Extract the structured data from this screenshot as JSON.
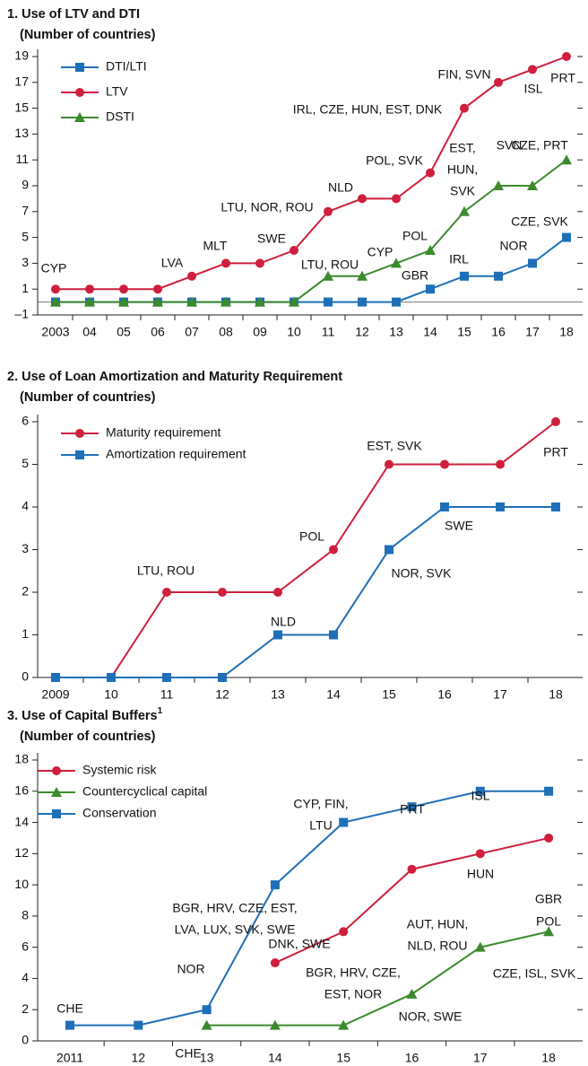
{
  "chart_data": [
    {
      "type": "line",
      "title": "1. Use of LTV and DTI",
      "subtitle": "(Number of countries)",
      "categories": [
        "2003",
        "04",
        "05",
        "06",
        "07",
        "08",
        "09",
        "10",
        "11",
        "12",
        "13",
        "14",
        "15",
        "16",
        "17",
        "18"
      ],
      "series": [
        {
          "name": "DTI/LTI",
          "color": "#1f6fb8",
          "marker": "square",
          "values": [
            0,
            0,
            0,
            0,
            0,
            0,
            0,
            0,
            0,
            0,
            0,
            1,
            2,
            2,
            3,
            5
          ]
        },
        {
          "name": "LTV",
          "color": "#cf1f3c",
          "marker": "circle",
          "values": [
            1,
            1,
            1,
            1,
            2,
            3,
            3,
            4,
            7,
            8,
            8,
            10,
            15,
            17,
            18,
            19
          ]
        },
        {
          "name": "DSTI",
          "color": "#3c8a2e",
          "marker": "triangle",
          "values": [
            0,
            0,
            0,
            0,
            0,
            0,
            0,
            0,
            2,
            2,
            3,
            4,
            7,
            9,
            9,
            11
          ]
        }
      ],
      "ylim": [
        -1,
        19
      ],
      "yticks": [
        {
          "value": -1,
          "label": "–1"
        },
        1,
        3,
        5,
        7,
        9,
        11,
        13,
        15,
        17,
        19
      ],
      "legend": "upper left",
      "annotations": [
        [
          "CYP"
        ],
        [
          "LVA"
        ],
        [
          "MLT"
        ],
        [
          "SWE"
        ],
        [
          "LTU, NOR, ROU"
        ],
        [
          "NLD"
        ],
        [
          "POL, SVK"
        ],
        [
          "IRL, CZE, HUN, EST, DNK"
        ],
        [
          "FIN, SVN"
        ],
        [
          "ISL"
        ],
        [
          "PRT"
        ],
        [
          "LTU, ROU"
        ],
        [
          "CYP"
        ],
        [
          "POL"
        ],
        [
          "EST,",
          "HUN,",
          "SVK"
        ],
        [
          "SVN"
        ],
        [
          "CZE, PRT"
        ],
        [
          "CZE, SVK"
        ],
        [
          "NOR"
        ],
        [
          "IRL"
        ],
        [
          "GBR"
        ]
      ]
    },
    {
      "type": "line",
      "title": "2. Use of Loan Amortization and Maturity Requirement",
      "subtitle": "(Number of countries)",
      "categories": [
        "2009",
        "10",
        "11",
        "12",
        "13",
        "14",
        "15",
        "16",
        "17",
        "18"
      ],
      "series": [
        {
          "name": "Maturity requirement",
          "color": "#cf1f3c",
          "marker": "circle",
          "values": [
            0,
            0,
            2,
            2,
            2,
            3,
            5,
            5,
            5,
            6
          ]
        },
        {
          "name": "Amortization requirement",
          "color": "#1f6fb8",
          "marker": "square",
          "values": [
            0,
            0,
            0,
            0,
            1,
            1,
            3,
            4,
            4,
            4
          ]
        }
      ],
      "ylim": [
        0,
        6
      ],
      "yticks": [
        0,
        1,
        2,
        3,
        4,
        5,
        6
      ],
      "legend": "upper left",
      "annotations": [
        [
          "LTU, ROU"
        ],
        [
          "POL"
        ],
        [
          "EST, SVK"
        ],
        [
          "PRT"
        ],
        [
          "NLD"
        ],
        [
          "NOR, SVK"
        ],
        [
          "SWE"
        ]
      ]
    },
    {
      "type": "line",
      "title": "3. Use of Capital Buffers",
      "title_note": "1",
      "subtitle": "(Number of countries)",
      "categories": [
        "2011",
        "12",
        "13",
        "14",
        "15",
        "16",
        "17",
        "18"
      ],
      "series": [
        {
          "name": "Systemic risk",
          "color": "#cf1f3c",
          "marker": "circle",
          "values": [
            null,
            null,
            null,
            5,
            7,
            11,
            12,
            13
          ]
        },
        {
          "name": "Countercyclical capital",
          "color": "#3c8a2e",
          "marker": "triangle",
          "values": [
            null,
            null,
            1,
            1,
            1,
            3,
            6,
            7
          ]
        },
        {
          "name": "Conservation",
          "color": "#1f6fb8",
          "marker": "square",
          "values": [
            1,
            1,
            2,
            10,
            14,
            15,
            16,
            16
          ]
        }
      ],
      "ylim": [
        0,
        18
      ],
      "yticks": [
        0,
        2,
        4,
        6,
        8,
        10,
        12,
        14,
        16,
        18
      ],
      "legend": "upper left",
      "annotations": [
        [
          "CHE"
        ],
        [
          "NOR"
        ],
        [
          "CHE"
        ],
        [
          "BGR, HRV, CZE, EST,",
          "LVA, LUX, SVK, SWE"
        ],
        [
          "CYP, FIN,",
          "LTU"
        ],
        [
          "PRT"
        ],
        [
          "ISL"
        ],
        [
          "HUN"
        ],
        [
          "POL"
        ],
        [
          "DNK, SWE"
        ],
        [
          "AUT, HUN,",
          "NLD, ROU"
        ],
        [
          "BGR, HRV, CZE,",
          "EST, NOR"
        ],
        [
          "GBR"
        ],
        [
          "CZE, ISL, SVK"
        ],
        [
          "NOR, SWE"
        ]
      ]
    }
  ]
}
